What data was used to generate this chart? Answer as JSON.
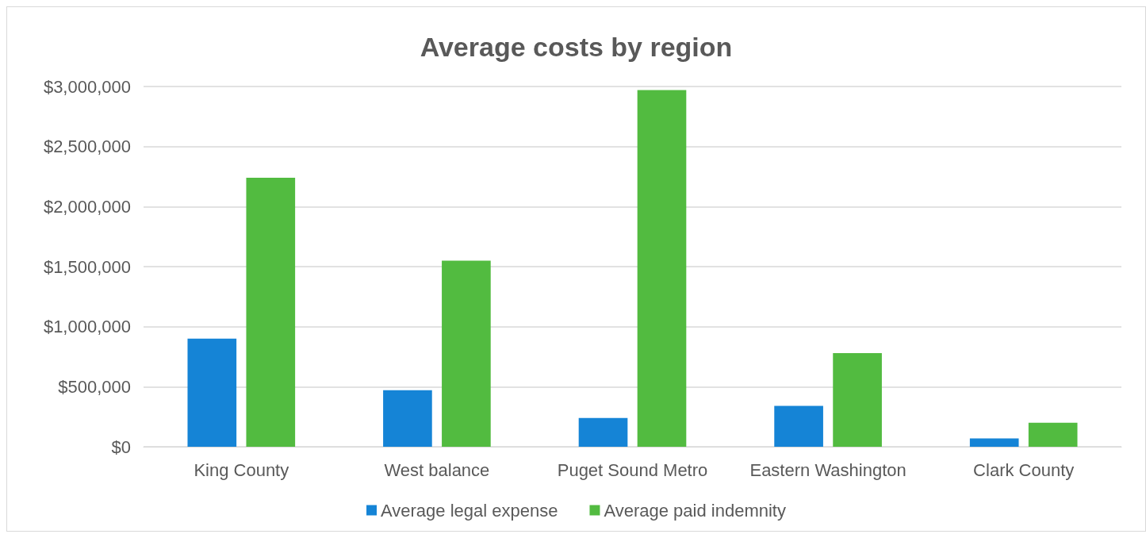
{
  "chart_data": {
    "type": "bar",
    "title": "Average costs by region",
    "categories": [
      "King County",
      "West balance",
      "Puget Sound Metro",
      "Eastern Washington",
      "Clark County"
    ],
    "series": [
      {
        "name": "Average legal expense",
        "color": "#1584d6",
        "values": [
          900000,
          470000,
          240000,
          340000,
          70000
        ]
      },
      {
        "name": "Average paid indemnity",
        "color": "#52bb40",
        "values": [
          2240000,
          1550000,
          2970000,
          780000,
          200000
        ]
      }
    ],
    "ylim": [
      0,
      3000000
    ],
    "yticks": [
      {
        "value": 0,
        "label": "$0"
      },
      {
        "value": 500000,
        "label": "$500,000"
      },
      {
        "value": 1000000,
        "label": "$1,000,000"
      },
      {
        "value": 1500000,
        "label": "$1,500,000"
      },
      {
        "value": 2000000,
        "label": "$2,000,000"
      },
      {
        "value": 2500000,
        "label": "$2,500,000"
      },
      {
        "value": 3000000,
        "label": "$3,000,000"
      }
    ],
    "grid": "y",
    "legend": "bottom"
  }
}
